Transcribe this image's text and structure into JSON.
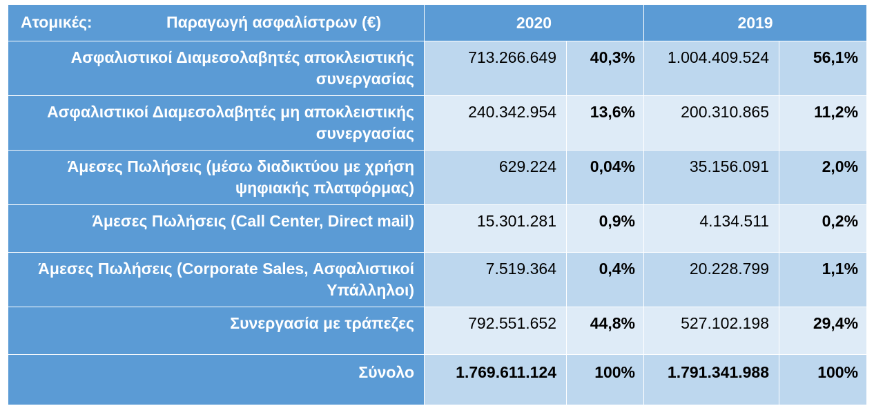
{
  "header": {
    "segment_label": "Ατομικές:",
    "metric_label": "Παραγωγή ασφαλίστρων   (€)",
    "year_2020": "2020",
    "year_2019": "2019"
  },
  "rows": [
    {
      "label": "Ασφαλιστικοί Διαμεσολαβητές αποκλειστικής συνεργασίας",
      "value_2020": "713.266.649",
      "share_2020": "40,3%",
      "value_2019": "1.004.409.524",
      "share_2019": "56,1%"
    },
    {
      "label": "Ασφαλιστικοί Διαμεσολαβητές  μη αποκλειστικής συνεργασίας",
      "value_2020": "240.342.954",
      "share_2020": "13,6%",
      "value_2019": "200.310.865",
      "share_2019": "11,2%"
    },
    {
      "label": "Άμεσες Πωλήσεις  (μέσω διαδικτύου με χρήση ψηφιακής πλατφόρμας)",
      "value_2020": "629.224",
      "share_2020": "0,04%",
      "value_2019": "35.156.091",
      "share_2019": "2,0%"
    },
    {
      "label": "Άμεσες Πωλήσεις  (Call Center,  Direct mail)",
      "value_2020": "15.301.281",
      "share_2020": "0,9%",
      "value_2019": "4.134.511",
      "share_2019": "0,2%"
    },
    {
      "label": "Άμεσες Πωλήσεις  (Corporate Sales, Ασφαλιστικοί Υπάλληλοι)",
      "value_2020": "7.519.364",
      "share_2020": "0,4%",
      "value_2019": "20.228.799",
      "share_2019": "1,1%"
    },
    {
      "label": "Συνεργασία με τράπεζες",
      "value_2020": "792.551.652",
      "share_2020": "44,8%",
      "value_2019": "527.102.198",
      "share_2019": "29,4%"
    }
  ],
  "total": {
    "label": "Σύνολο",
    "value_2020": "1.769.611.124",
    "share_2020": "100%",
    "value_2019": "1.791.341.988",
    "share_2019": "100%"
  },
  "colors": {
    "header_blue": "#5b9bd5",
    "band_dark": "#bdd7ee",
    "band_light": "#deebf7",
    "grid_line": "#ffffff"
  }
}
